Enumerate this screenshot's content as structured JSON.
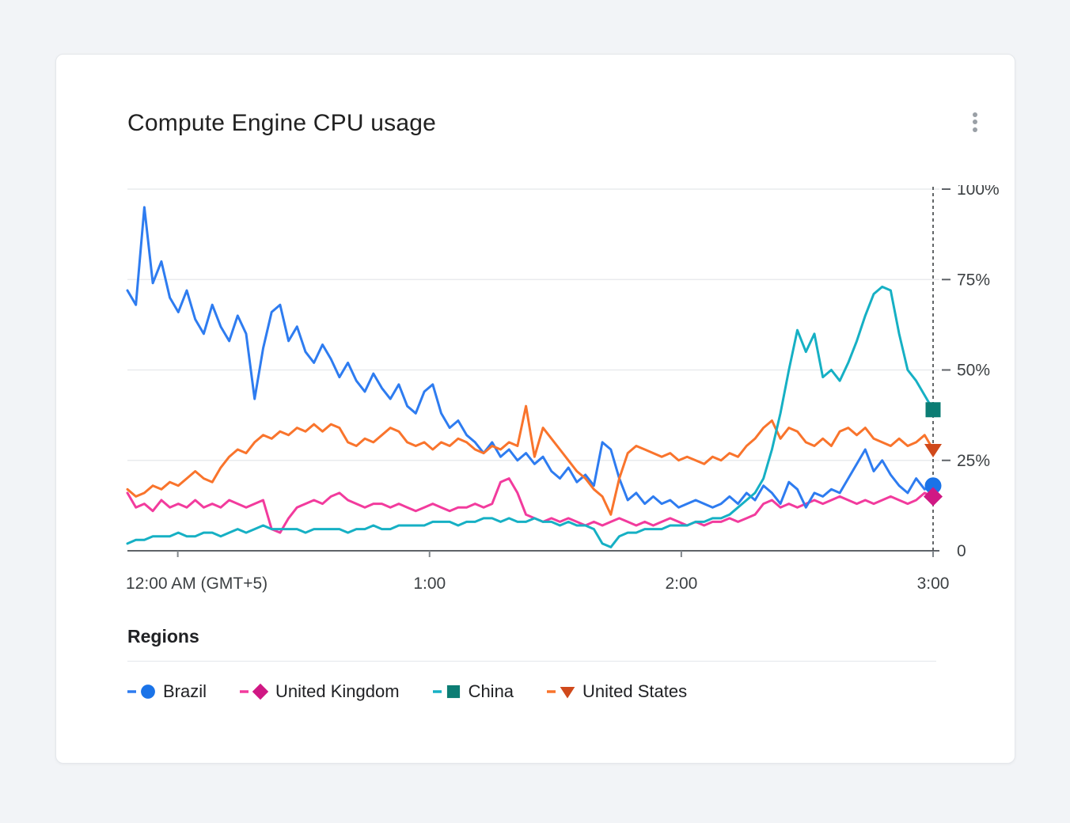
{
  "card": {
    "title": "Compute Engine CPU usage",
    "menu_icon": "more-vert"
  },
  "legend": {
    "title": "Regions",
    "items": [
      {
        "label": "Brazil"
      },
      {
        "label": "United Kingdom"
      },
      {
        "label": "China"
      },
      {
        "label": "United States"
      }
    ]
  },
  "chart_data": {
    "type": "line",
    "title": "Compute Engine CPU usage",
    "grid": true,
    "legend_position": "bottom",
    "cursor_time": "3:00",
    "x_axis": {
      "ticks": [
        "12:00 AM (GMT+5)",
        "1:00",
        "2:00",
        "3:00"
      ],
      "tick_positions": [
        0,
        1,
        2,
        3
      ],
      "range": [
        -0.2,
        3
      ]
    },
    "y_axis": {
      "tick_labels": [
        "100%",
        "75%",
        "50%",
        "25%",
        "0"
      ],
      "tick_values": [
        100,
        75,
        50,
        25,
        0
      ],
      "range": [
        0,
        100
      ],
      "unit": "%"
    },
    "series": [
      {
        "name": "Brazil",
        "color": "#2e7cf0",
        "marker": "circle",
        "marker_color": "#1a73e8",
        "end_value": 18,
        "values": [
          72,
          68,
          95,
          74,
          80,
          70,
          66,
          72,
          64,
          60,
          68,
          62,
          58,
          65,
          60,
          42,
          56,
          66,
          68,
          58,
          62,
          55,
          52,
          57,
          53,
          48,
          52,
          47,
          44,
          49,
          45,
          42,
          46,
          40,
          38,
          44,
          46,
          38,
          34,
          36,
          32,
          30,
          27,
          30,
          26,
          28,
          25,
          27,
          24,
          26,
          22,
          20,
          23,
          19,
          21,
          18,
          30,
          28,
          20,
          14,
          16,
          13,
          15,
          13,
          14,
          12,
          13,
          14,
          13,
          12,
          13,
          15,
          13,
          16,
          14,
          18,
          16,
          13,
          19,
          17,
          12,
          16,
          15,
          17,
          16,
          20,
          24,
          28,
          22,
          25,
          21,
          18,
          16,
          20,
          17,
          18
        ]
      },
      {
        "name": "United Kingdom",
        "color": "#f23b9d",
        "marker": "diamond",
        "marker_color": "#d01884",
        "end_value": 15,
        "values": [
          16,
          12,
          13,
          11,
          14,
          12,
          13,
          12,
          14,
          12,
          13,
          12,
          14,
          13,
          12,
          13,
          14,
          6,
          5,
          9,
          12,
          13,
          14,
          13,
          15,
          16,
          14,
          13,
          12,
          13,
          13,
          12,
          13,
          12,
          11,
          12,
          13,
          12,
          11,
          12,
          12,
          13,
          12,
          13,
          19,
          20,
          16,
          10,
          9,
          8,
          9,
          8,
          9,
          8,
          7,
          8,
          7,
          8,
          9,
          8,
          7,
          8,
          7,
          8,
          9,
          8,
          7,
          8,
          7,
          8,
          8,
          9,
          8,
          9,
          10,
          13,
          14,
          12,
          13,
          12,
          13,
          14,
          13,
          14,
          15,
          14,
          13,
          14,
          13,
          14,
          15,
          14,
          13,
          14,
          16,
          15
        ]
      },
      {
        "name": "China",
        "color": "#16b0c4",
        "marker": "square",
        "marker_color": "#0c7d74",
        "end_value": 39,
        "values": [
          2,
          3,
          3,
          4,
          4,
          4,
          5,
          4,
          4,
          5,
          5,
          4,
          5,
          6,
          5,
          6,
          7,
          6,
          6,
          6,
          6,
          5,
          6,
          6,
          6,
          6,
          5,
          6,
          6,
          7,
          6,
          6,
          7,
          7,
          7,
          7,
          8,
          8,
          8,
          7,
          8,
          8,
          9,
          9,
          8,
          9,
          8,
          8,
          9,
          8,
          8,
          7,
          8,
          7,
          7,
          6,
          2,
          1,
          4,
          5,
          5,
          6,
          6,
          6,
          7,
          7,
          7,
          8,
          8,
          9,
          9,
          10,
          12,
          14,
          16,
          20,
          28,
          38,
          50,
          61,
          55,
          60,
          48,
          50,
          47,
          52,
          58,
          65,
          71,
          73,
          72,
          60,
          50,
          47,
          43,
          39
        ]
      },
      {
        "name": "United States",
        "color": "#f9742c",
        "marker": "triangle-down",
        "marker_color": "#d0491b",
        "end_value": 28,
        "values": [
          17,
          15,
          16,
          18,
          17,
          19,
          18,
          20,
          22,
          20,
          19,
          23,
          26,
          28,
          27,
          30,
          32,
          31,
          33,
          32,
          34,
          33,
          35,
          33,
          35,
          34,
          30,
          29,
          31,
          30,
          32,
          34,
          33,
          30,
          29,
          30,
          28,
          30,
          29,
          31,
          30,
          28,
          27,
          29,
          28,
          30,
          29,
          40,
          26,
          34,
          31,
          28,
          25,
          22,
          20,
          17,
          15,
          10,
          20,
          27,
          29,
          28,
          27,
          26,
          27,
          25,
          26,
          25,
          24,
          26,
          25,
          27,
          26,
          29,
          31,
          34,
          36,
          31,
          34,
          33,
          30,
          29,
          31,
          29,
          33,
          34,
          32,
          34,
          31,
          30,
          29,
          31,
          29,
          30,
          32,
          28
        ]
      }
    ]
  }
}
